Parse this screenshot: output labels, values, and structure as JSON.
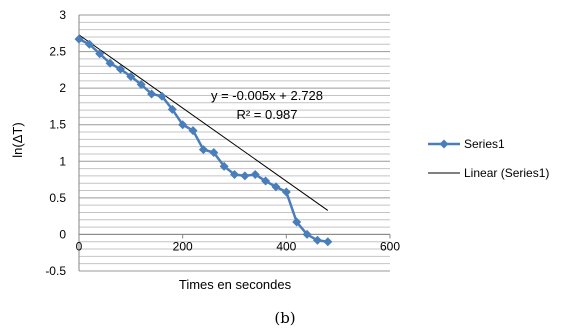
{
  "caption": "(b)",
  "chart_data": {
    "type": "scatter",
    "xlabel": "Times en secondes",
    "ylabel": "ln(ΔT)",
    "xlim": [
      0,
      600
    ],
    "ylim": [
      -0.5,
      3
    ],
    "x_ticks": [
      "0",
      "200",
      "400",
      "600"
    ],
    "y_ticks": [
      "3",
      "2.5",
      "2",
      "1.5",
      "1",
      "0.5",
      "0",
      "-0.5"
    ],
    "grid": {
      "horizontal_minor": 0.1,
      "horizontal_major": 0.5
    },
    "legend_position": "right",
    "series": [
      {
        "name": "Series1",
        "color": "#4a7ebb",
        "marker": "diamond",
        "x": [
          0,
          20,
          40,
          60,
          80,
          100,
          120,
          140,
          160,
          180,
          200,
          220,
          240,
          260,
          280,
          300,
          320,
          340,
          360,
          380,
          400,
          420,
          440,
          460,
          480
        ],
        "y": [
          2.67,
          2.6,
          2.47,
          2.34,
          2.26,
          2.16,
          2.05,
          1.92,
          1.89,
          1.71,
          1.5,
          1.42,
          1.16,
          1.12,
          0.93,
          0.82,
          0.8,
          0.82,
          0.73,
          0.65,
          0.58,
          0.17,
          0.0,
          -0.08,
          -0.1
        ]
      }
    ],
    "trendline": {
      "name": "Linear (Series1)",
      "color": "#000000",
      "slope": -0.005,
      "intercept": 2.728,
      "x_range": [
        0,
        480
      ]
    },
    "annotation": {
      "equation": "y = -0.005x + 2.728",
      "r_squared": "R² = 0.987"
    }
  }
}
